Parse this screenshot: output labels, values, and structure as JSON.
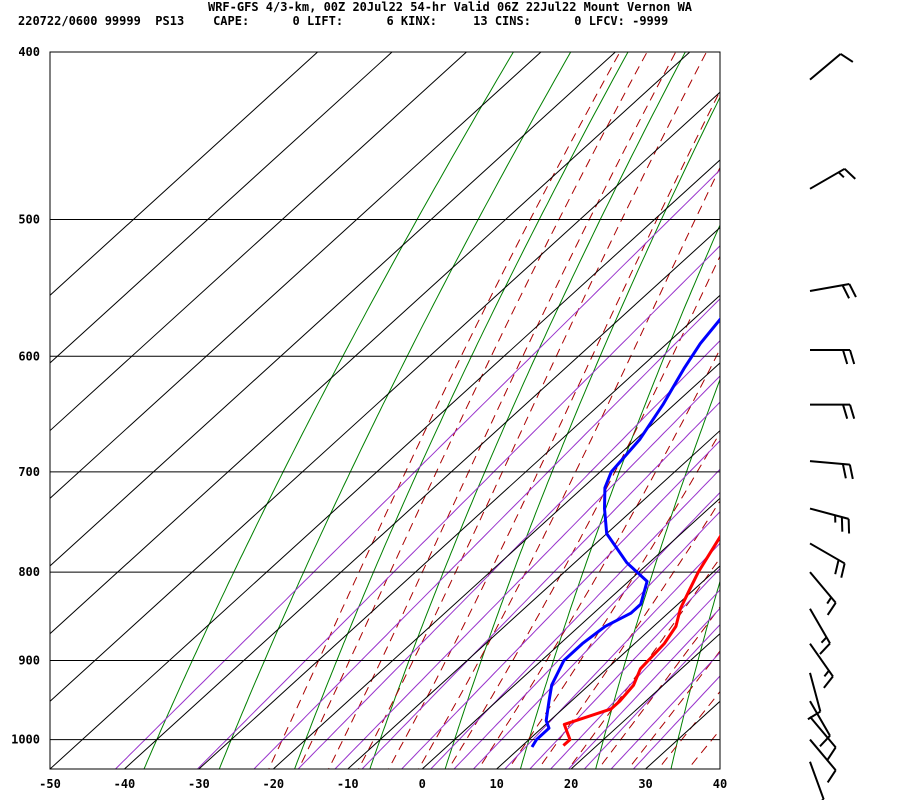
{
  "header": {
    "line1": "WRF-GFS 4/3-km, 00Z 20Jul22 54-hr Valid 06Z 22Jul22 Mount Vernon WA",
    "line2": "220722/0600 99999  PS13    CAPE:      0 LIFT:      6 KINX:     13 CINS:      0 LFCV: -9999"
  },
  "chart_data": {
    "type": "line",
    "title": "WRF-GFS 4/3-km, 00Z 20Jul22 54-hr Valid 06Z 22Jul22 Mount Vernon WA",
    "xlabel": "",
    "ylabel": "",
    "x_ticks": [
      "-50",
      "-40",
      "-30",
      "-20",
      "-10",
      "0",
      "10",
      "20",
      "30",
      "40"
    ],
    "y_ticks": [
      "400",
      "500",
      "600",
      "700",
      "800",
      "900",
      "1000"
    ],
    "xlim": [
      -50,
      40
    ],
    "ylim": [
      1040,
      400
    ],
    "y_scale": "log-pressure",
    "skew": true,
    "grid": true,
    "colors": {
      "temperature": "#ff0000",
      "dewpoint": "#0000ff",
      "isotherm": "#000000",
      "dry_adiabat": "#008000",
      "moist_adiabat": "#aa0000",
      "mixing_ratio": "#9933cc",
      "wind_barb": "#000000"
    },
    "series": [
      {
        "name": "",
        "points": [
          [
            1008,
            15.5
          ],
          [
            1000,
            15.5
          ],
          [
            990,
            14
          ],
          [
            980,
            12.5
          ],
          [
            970,
            14.5
          ],
          [
            960,
            16.5
          ],
          [
            950,
            16.5
          ],
          [
            930,
            16
          ],
          [
            910,
            14.5
          ],
          [
            880,
            14
          ],
          [
            860,
            13
          ],
          [
            840,
            11
          ],
          [
            820,
            9.5
          ],
          [
            800,
            8
          ],
          [
            760,
            5.5
          ],
          [
            720,
            2
          ],
          [
            690,
            -1
          ],
          [
            650,
            -4.5
          ],
          [
            620,
            -7.5
          ],
          [
            600,
            -10
          ],
          [
            575,
            -12.5
          ],
          [
            550,
            -14.5
          ],
          [
            530,
            -16
          ],
          [
            510,
            -18
          ],
          [
            490,
            -20
          ],
          [
            470,
            -22.5
          ],
          [
            450,
            -24
          ],
          [
            430,
            -26
          ],
          [
            415,
            -27.5
          ]
        ]
      },
      {
        "name": "",
        "points": [
          [
            1010,
            11.5
          ],
          [
            1000,
            11
          ],
          [
            985,
            11
          ],
          [
            975,
            9.5
          ],
          [
            965,
            8.5
          ],
          [
            950,
            7
          ],
          [
            930,
            5
          ],
          [
            900,
            3
          ],
          [
            880,
            3
          ],
          [
            860,
            3.5
          ],
          [
            845,
            5
          ],
          [
            835,
            5
          ],
          [
            810,
            2.5
          ],
          [
            790,
            -3
          ],
          [
            760,
            -10
          ],
          [
            735,
            -14
          ],
          [
            715,
            -17
          ],
          [
            700,
            -18.5
          ],
          [
            670,
            -19.5
          ],
          [
            640,
            -21.5
          ],
          [
            610,
            -24
          ],
          [
            590,
            -25.5
          ],
          [
            560,
            -27
          ],
          [
            530,
            -28.5
          ],
          [
            500,
            -29.5
          ],
          [
            480,
            -30
          ],
          [
            450,
            -33
          ],
          [
            430,
            -35
          ],
          [
            415,
            -36
          ]
        ]
      }
    ],
    "wind_barbs": [
      {
        "p": 415,
        "dir": 230,
        "speed": 10
      },
      {
        "p": 480,
        "dir": 240,
        "speed": 15
      },
      {
        "p": 550,
        "dir": 260,
        "speed": 20
      },
      {
        "p": 595,
        "dir": 270,
        "speed": 20
      },
      {
        "p": 640,
        "dir": 270,
        "speed": 20
      },
      {
        "p": 690,
        "dir": 275,
        "speed": 20
      },
      {
        "p": 735,
        "dir": 285,
        "speed": 25
      },
      {
        "p": 770,
        "dir": 300,
        "speed": 20
      },
      {
        "p": 800,
        "dir": 320,
        "speed": 15
      },
      {
        "p": 840,
        "dir": 330,
        "speed": 15
      },
      {
        "p": 880,
        "dir": 325,
        "speed": 15
      },
      {
        "p": 915,
        "dir": 345,
        "speed": 10
      },
      {
        "p": 950,
        "dir": 330,
        "speed": 10
      },
      {
        "p": 970,
        "dir": 320,
        "speed": 10
      },
      {
        "p": 1000,
        "dir": 320,
        "speed": 10
      },
      {
        "p": 1030,
        "dir": 340,
        "speed": 5
      }
    ]
  }
}
